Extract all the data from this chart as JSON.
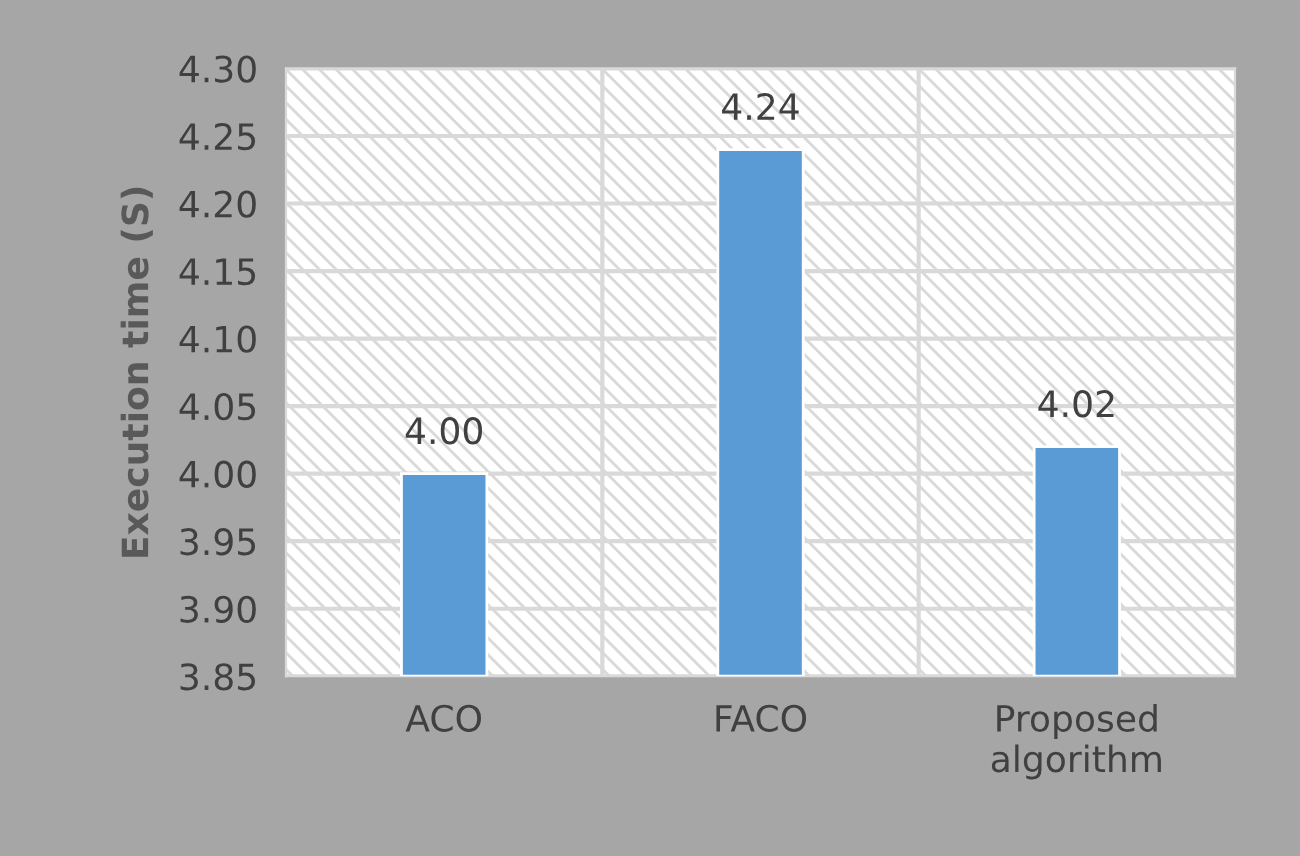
{
  "chart_data": {
    "type": "bar",
    "ylabel": "Execution time (S)",
    "categories": [
      "ACO",
      "FACO",
      "Proposed\nalgorithm"
    ],
    "values": [
      4.0,
      4.24,
      4.02
    ],
    "color": "#5b9bd5",
    "value_labels": [
      "4.00",
      "4.24",
      "4.02"
    ],
    "ylim": [
      3.85,
      4.3
    ],
    "yticks": [
      {
        "value": 3.85,
        "label": "3.85"
      },
      {
        "value": 3.9,
        "label": "3.90"
      },
      {
        "value": 3.95,
        "label": "3.95"
      },
      {
        "value": 4.0,
        "label": "4.00"
      },
      {
        "value": 4.05,
        "label": "4.05"
      },
      {
        "value": 4.1,
        "label": "4.10"
      },
      {
        "value": 4.15,
        "label": "4.15"
      },
      {
        "value": 4.2,
        "label": "4.20"
      },
      {
        "value": 4.25,
        "label": "4.25"
      },
      {
        "value": 4.3,
        "label": "4.30"
      }
    ],
    "grid": "y",
    "legend": false
  }
}
